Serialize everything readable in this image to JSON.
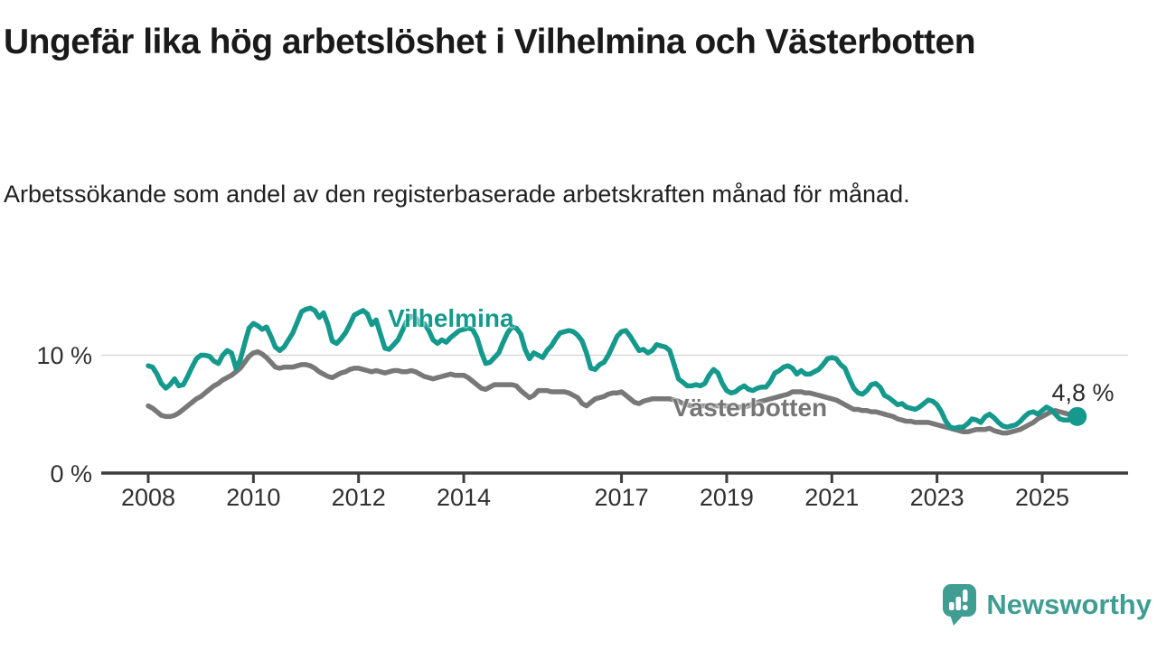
{
  "header": {
    "title": "Ungefär lika hög arbetslöshet i Vilhelmina och Västerbotten",
    "subtitle": "Arbetssökande som andel av den registerbaserade arbetskraften månad för månad."
  },
  "chart_data": {
    "type": "line",
    "title": "Ungefär lika hög arbetslöshet i Vilhelmina och Västerbotten",
    "subtitle": "Arbetssökande som andel av den registerbaserade arbetskraften månad för månad.",
    "unit": "%",
    "x_start": "2008-01",
    "x_end": "2025-09",
    "x_tick_years": [
      2008,
      2010,
      2012,
      2014,
      2017,
      2019,
      2021,
      2023,
      2025
    ],
    "y_ticks": [
      {
        "value": 0,
        "label": "0 %"
      },
      {
        "value": 10,
        "label": "10 %"
      }
    ],
    "ylim": [
      0,
      15
    ],
    "grid": "horizontal-10-only",
    "legend_position": "inline-labels",
    "end_annotation": "4,8 %",
    "end_value": 4.8,
    "series": [
      {
        "name": "Vilhelmina",
        "color": "#14998c",
        "values": [
          9.1,
          9.0,
          8.4,
          7.6,
          7.2,
          7.5,
          8.0,
          7.4,
          7.5,
          8.2,
          9.0,
          9.7,
          10.0,
          10.0,
          9.9,
          9.5,
          9.3,
          10.0,
          10.4,
          10.2,
          8.9,
          9.6,
          11.0,
          12.3,
          12.7,
          12.5,
          12.2,
          12.4,
          11.6,
          10.7,
          10.4,
          10.7,
          11.3,
          11.9,
          12.8,
          13.7,
          13.9,
          14.0,
          13.8,
          13.2,
          13.6,
          12.6,
          11.2,
          11.0,
          11.4,
          11.9,
          12.6,
          13.4,
          13.6,
          13.8,
          13.5,
          12.6,
          13.0,
          11.8,
          10.6,
          10.5,
          10.9,
          11.3,
          12.1,
          12.9,
          13.3,
          13.2,
          12.6,
          12.7,
          12.1,
          11.3,
          11.0,
          11.3,
          11.1,
          11.5,
          11.8,
          12.1,
          12.2,
          12.3,
          12.2,
          11.5,
          10.3,
          9.3,
          9.4,
          9.8,
          10.2,
          11.1,
          11.9,
          12.4,
          12.3,
          11.8,
          10.5,
          9.7,
          10.2,
          10.0,
          9.8,
          10.4,
          10.8,
          11.4,
          11.9,
          12.0,
          12.1,
          12.0,
          11.7,
          11.2,
          10.2,
          8.9,
          8.8,
          9.2,
          9.4,
          10.0,
          10.8,
          11.6,
          12.0,
          12.1,
          11.6,
          11.0,
          10.4,
          10.5,
          10.2,
          10.4,
          10.9,
          10.8,
          10.7,
          10.4,
          9.2,
          8.0,
          7.7,
          7.4,
          7.4,
          7.5,
          7.4,
          7.6,
          8.3,
          8.8,
          8.5,
          7.6,
          7.0,
          6.8,
          6.9,
          7.2,
          7.4,
          7.1,
          7.0,
          7.2,
          7.3,
          7.3,
          7.8,
          8.5,
          8.7,
          9.0,
          9.1,
          8.9,
          8.4,
          8.7,
          8.4,
          8.4,
          8.6,
          8.8,
          9.2,
          9.7,
          9.8,
          9.7,
          9.2,
          8.9,
          8.0,
          7.2,
          6.8,
          6.7,
          7.0,
          7.5,
          7.6,
          7.3,
          6.6,
          6.4,
          6.1,
          5.8,
          5.9,
          5.6,
          5.5,
          5.4,
          5.6,
          5.9,
          6.2,
          6.1,
          5.8,
          5.2,
          4.4,
          3.9,
          3.8,
          3.9,
          3.9,
          4.2,
          4.6,
          4.5,
          4.3,
          4.8,
          5.0,
          4.7,
          4.3,
          4.0,
          3.9,
          4.0,
          4.1,
          4.4,
          4.8,
          5.1,
          5.2,
          5.0,
          5.3,
          5.6,
          5.4,
          5.0,
          4.6,
          4.5,
          4.5,
          4.6,
          4.8
        ]
      },
      {
        "name": "Västerbotten",
        "color": "#787878",
        "values": [
          5.7,
          5.5,
          5.2,
          4.9,
          4.8,
          4.8,
          4.9,
          5.1,
          5.4,
          5.7,
          6.0,
          6.3,
          6.5,
          6.8,
          7.1,
          7.4,
          7.6,
          7.9,
          8.1,
          8.3,
          8.6,
          8.9,
          9.4,
          9.9,
          10.2,
          10.3,
          10.1,
          9.8,
          9.4,
          9.0,
          8.9,
          9.0,
          9.0,
          9.0,
          9.1,
          9.2,
          9.2,
          9.1,
          8.9,
          8.6,
          8.4,
          8.2,
          8.1,
          8.3,
          8.5,
          8.6,
          8.8,
          8.9,
          8.9,
          8.8,
          8.7,
          8.6,
          8.7,
          8.6,
          8.5,
          8.6,
          8.7,
          8.7,
          8.6,
          8.6,
          8.7,
          8.6,
          8.4,
          8.2,
          8.1,
          8.0,
          8.1,
          8.2,
          8.3,
          8.4,
          8.3,
          8.3,
          8.3,
          8.1,
          7.8,
          7.5,
          7.2,
          7.1,
          7.3,
          7.5,
          7.5,
          7.5,
          7.5,
          7.5,
          7.4,
          7.0,
          6.7,
          6.4,
          6.6,
          7.0,
          7.0,
          7.0,
          6.9,
          6.9,
          6.9,
          6.9,
          6.8,
          6.6,
          6.4,
          5.9,
          5.7,
          6.0,
          6.3,
          6.4,
          6.5,
          6.7,
          6.8,
          6.8,
          6.9,
          6.6,
          6.3,
          6.0,
          5.9,
          6.1,
          6.2,
          6.3,
          6.3,
          6.3,
          6.3,
          6.3,
          6.2,
          6.1,
          5.9,
          5.8,
          5.7,
          5.7,
          5.7,
          5.7,
          5.7,
          5.7,
          5.7,
          5.7,
          5.7,
          5.6,
          5.6,
          5.6,
          5.6,
          5.7,
          5.9,
          6.0,
          6.1,
          6.2,
          6.3,
          6.4,
          6.5,
          6.6,
          6.7,
          6.9,
          6.9,
          6.9,
          6.8,
          6.8,
          6.7,
          6.6,
          6.5,
          6.4,
          6.3,
          6.2,
          6.0,
          5.8,
          5.6,
          5.4,
          5.4,
          5.3,
          5.3,
          5.2,
          5.2,
          5.1,
          5.0,
          4.9,
          4.8,
          4.6,
          4.5,
          4.4,
          4.4,
          4.3,
          4.3,
          4.3,
          4.3,
          4.2,
          4.1,
          4.0,
          3.9,
          3.8,
          3.7,
          3.6,
          3.5,
          3.5,
          3.6,
          3.7,
          3.7,
          3.7,
          3.8,
          3.6,
          3.5,
          3.4,
          3.4,
          3.5,
          3.6,
          3.7,
          3.9,
          4.1,
          4.3,
          4.6,
          4.8,
          5.0,
          5.2,
          5.3,
          5.2,
          5.1,
          5.0,
          5.1,
          5.1
        ]
      }
    ],
    "colors": {
      "accent_teal": "#14998c",
      "series_gray": "#787878",
      "gridline": "#d9d9d9",
      "axis": "#3d3d3d",
      "brand": "#3f9d92"
    }
  },
  "footer": {
    "brand": "Newsworthy"
  }
}
